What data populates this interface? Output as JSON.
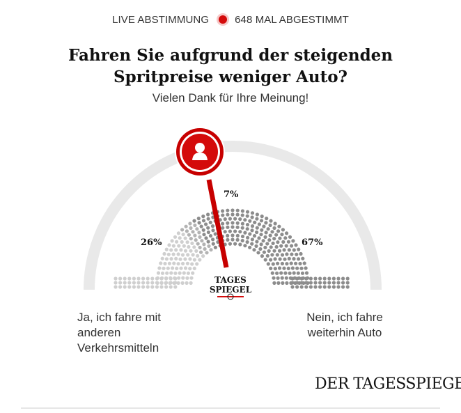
{
  "header": {
    "live_label": "LIVE ABSTIMMUNG",
    "vote_count": "648 MAL ABGESTIMMT"
  },
  "poll": {
    "question": "Fahren Sie aufgrund der steigenden Spritpreise weniger Auto?",
    "thanks": "Vielen Dank für Ihre Meinung!",
    "options": [
      {
        "label": "Ja, ich fahre mit anderen Verkehrsmitteln",
        "percent_label": "26%",
        "share": 26
      },
      {
        "label": "",
        "percent_label": "7%",
        "share": 7
      },
      {
        "label": "Nein, ich fahre weiterhin Auto",
        "percent_label": "67%",
        "share": 67
      }
    ],
    "user_vote_share_position": 0.3
  },
  "center_logo": {
    "line1": "TAGES",
    "line2": "SPIEGEL"
  },
  "brand": "DER TAGESSPIEGEL",
  "colors": {
    "accent": "#d40b0b",
    "arc": "#e9e9e9",
    "dot_light": "#cfcfcf",
    "dot_mid": "#b3b3b3",
    "dot_dark": "#8c8c8c"
  }
}
